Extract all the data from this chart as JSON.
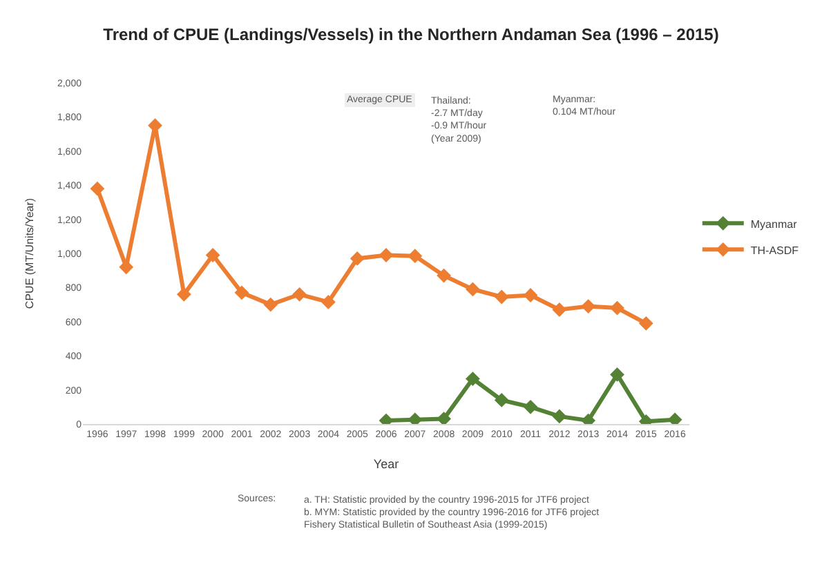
{
  "chart_data": {
    "type": "line",
    "title": "Trend of CPUE (Landings/Vessels) in the Northern Andaman Sea (1996 – 2015)",
    "xlabel": "Year",
    "ylabel": "CPUE (MT/Units/Year)",
    "categories": [
      "1996",
      "1997",
      "1998",
      "1999",
      "2000",
      "2001",
      "2002",
      "2003",
      "2004",
      "2005",
      "2006",
      "2007",
      "2008",
      "2009",
      "2010",
      "2011",
      "2012",
      "2013",
      "2014",
      "2015",
      "2016"
    ],
    "series": [
      {
        "name": "Myanmar",
        "color": "#548235",
        "values": [
          null,
          null,
          null,
          null,
          null,
          null,
          null,
          null,
          null,
          null,
          20,
          25,
          30,
          265,
          140,
          100,
          45,
          20,
          290,
          15,
          25
        ]
      },
      {
        "name": "TH-ASDF",
        "color": "#ed7d31",
        "values": [
          1380,
          920,
          1750,
          760,
          990,
          770,
          700,
          760,
          715,
          970,
          990,
          985,
          870,
          790,
          745,
          755,
          670,
          690,
          680,
          590,
          null
        ]
      }
    ],
    "ylim": [
      0,
      2000
    ],
    "yticks": [
      {
        "value": 0,
        "label": "0"
      },
      {
        "value": 200,
        "label": "200"
      },
      {
        "value": 400,
        "label": "400"
      },
      {
        "value": 600,
        "label": "600"
      },
      {
        "value": 800,
        "label": "800"
      },
      {
        "value": 1000,
        "label": "1,000"
      },
      {
        "value": 1200,
        "label": "1,200"
      },
      {
        "value": 1400,
        "label": "1,400"
      },
      {
        "value": 1600,
        "label": "1,600"
      },
      {
        "value": 1800,
        "label": "1,800"
      },
      {
        "value": 2000,
        "label": "2,000"
      }
    ],
    "grid": false,
    "legend": "right",
    "marker": "diamond",
    "line_style": "solid",
    "annotations": [
      "Average CPUE",
      "Thailand:\n-2.7 MT/day\n-0.9 MT/hour\n(Year 2009)",
      "Myanmar:\n0.104 MT/hour",
      "Sources:",
      "a. TH: Statistic provided by the country 1996-2015 for JTF6 project\nb. MYM: Statistic provided by the country 1996-2016 for JTF6 project\nFishery Statistical Bulletin of Southeast Asia (1999-2015)"
    ]
  }
}
